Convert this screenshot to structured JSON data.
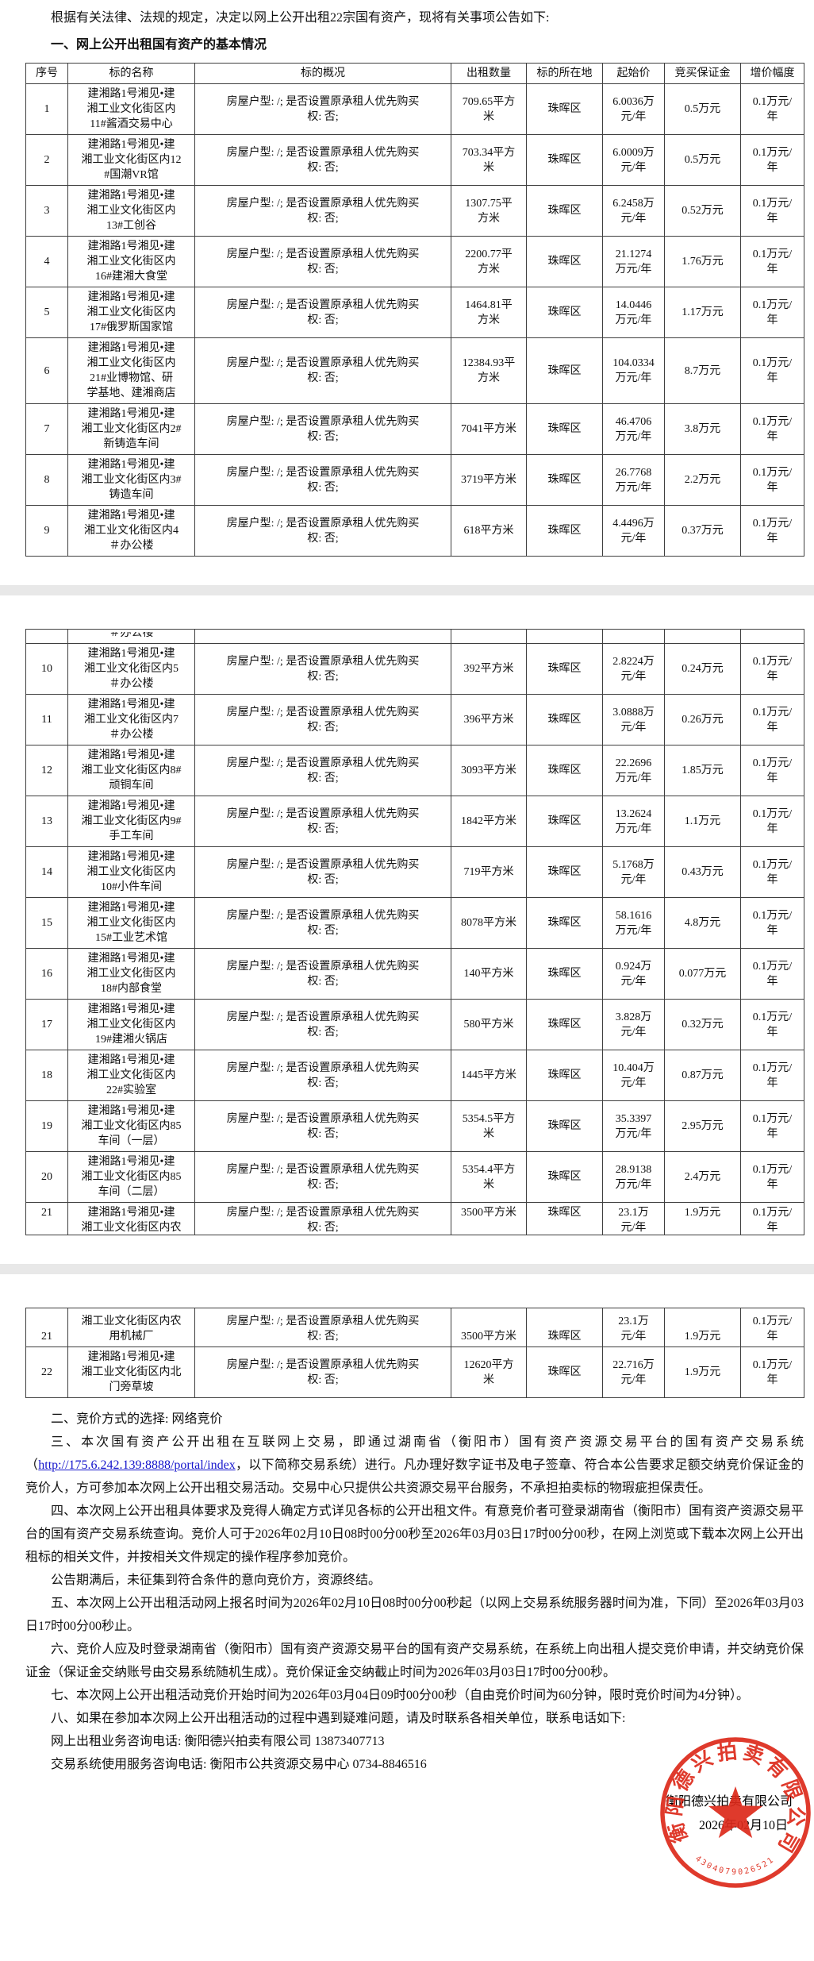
{
  "doc": {
    "intro": "根据有关法律、法规的规定，决定以网上公开出租22宗国有资产，现将有关事项公告如下:",
    "section1_title": "一、网上公开出租国有资产的基本情况",
    "s2": "二、竞价方式的选择: 网络竞价",
    "s3_pre": "三、本次国有资产公开出租在互联网上交易，即通过湖南省（衡阳市）国有资产资源交易平台的国有资产交易系统（",
    "s3_link": "http://175.6.242.139:8888/portal/index",
    "s3_post": "，以下简称交易系统）进行。凡办理好数字证书及电子签章、符合本公告要求足额交纳竞价保证金的竞价人，方可参加本次网上公开出租交易活动。交易中心只提供公共资源交易平台服务，不承担拍卖标的物瑕疵担保责任。",
    "s4": "四、本次网上公开出租具体要求及竞得人确定方式详见各标的公开出租文件。有意竞价者可登录湖南省（衡阳市）国有资产资源交易平台的国有资产交易系统查询。竞价人可于2026年02月10日08时00分00秒至2026年03月03日17时00分00秒，在网上浏览或下载本次网上公开出租标的相关文件，并按相关文件规定的操作程序参加竞价。",
    "s4b": "公告期满后，未征集到符合条件的意向竞价方，资源终结。",
    "s5": "五、本次网上公开出租活动网上报名时间为2026年02月10日08时00分00秒起（以网上交易系统服务器时间为准，下同）至2026年03月03日17时00分00秒止。",
    "s6": "六、竞价人应及时登录湖南省（衡阳市）国有资产资源交易平台的国有资产交易系统，在系统上向出租人提交竞价申请，并交纳竞价保证金（保证金交纳账号由交易系统随机生成）。竞价保证金交纳截止时间为2026年03月03日17时00分00秒。",
    "s7": "七、本次网上公开出租活动竞价开始时间为2026年03月04日09时00分00秒（自由竞价时间为60分钟，限时竞价时间为4分钟）。",
    "s8": "八、如果在参加本次网上公开出租活动的过程中遇到疑难问题，请及时联系各相关单位，联系电话如下:",
    "contact1": "网上出租业务咨询电话: 衡阳德兴拍卖有限公司 13873407713",
    "contact2": "交易系统使用服务咨询电话: 衡阳市公共资源交易中心 0734-8846516"
  },
  "table": {
    "headers": [
      "序号",
      "标的名称",
      "标的概况",
      "出租数量",
      "标的所在地",
      "起始价",
      "竞买保证金",
      "增价幅度"
    ],
    "common": {
      "overview": "房屋户型: /; 是否设置原承租人优先购买\n权: 否;",
      "district": "珠晖区",
      "increment": "0.1万元/\n年"
    },
    "rows": [
      {
        "no": "1",
        "name": "建湘路1号湘见•建\n湘工业文化街区内\n11#酱酒交易中心",
        "qty": "709.65平方\n米",
        "price": "6.0036万\n元/年",
        "deposit": "0.5万元"
      },
      {
        "no": "2",
        "name": "建湘路1号湘见•建\n湘工业文化街区内12\n#国潮VR馆",
        "qty": "703.34平方\n米",
        "price": "6.0009万\n元/年",
        "deposit": "0.5万元"
      },
      {
        "no": "3",
        "name": "建湘路1号湘见•建\n湘工业文化街区内\n13#工创谷",
        "qty": "1307.75平\n方米",
        "price": "6.2458万\n元/年",
        "deposit": "0.52万元"
      },
      {
        "no": "4",
        "name": "建湘路1号湘见•建\n湘工业文化街区内\n16#建湘大食堂",
        "qty": "2200.77平\n方米",
        "price": "21.1274\n万元/年",
        "deposit": "1.76万元"
      },
      {
        "no": "5",
        "name": "建湘路1号湘见•建\n湘工业文化街区内\n17#俄罗斯国家馆",
        "qty": "1464.81平\n方米",
        "price": "14.0446\n万元/年",
        "deposit": "1.17万元"
      },
      {
        "no": "6",
        "name": "建湘路1号湘见•建\n湘工业文化街区内\n21#业博物馆、研\n学基地、建湘商店",
        "qty": "12384.93平\n方米",
        "price": "104.0334\n万元/年",
        "deposit": "8.7万元"
      },
      {
        "no": "7",
        "name": "建湘路1号湘见•建\n湘工业文化街区内2#\n新铸造车间",
        "qty": "7041平方米",
        "price": "46.4706\n万元/年",
        "deposit": "3.8万元"
      },
      {
        "no": "8",
        "name": "建湘路1号湘见•建\n湘工业文化街区内3#\n铸造车间",
        "qty": "3719平方米",
        "price": "26.7768\n万元/年",
        "deposit": "2.2万元"
      },
      {
        "no": "9",
        "name": "建湘路1号湘见•建\n湘工业文化街区内4\n＃办公楼",
        "qty": "618平方米",
        "price": "4.4496万\n元/年",
        "deposit": "0.37万元"
      },
      {
        "no": "10",
        "name": "建湘路1号湘见•建\n湘工业文化街区内5\n＃办公楼",
        "qty": "392平方米",
        "price": "2.8224万\n元/年",
        "deposit": "0.24万元"
      },
      {
        "no": "11",
        "name": "建湘路1号湘见•建\n湘工业文化街区内7\n＃办公楼",
        "qty": "396平方米",
        "price": "3.0888万\n元/年",
        "deposit": "0.26万元"
      },
      {
        "no": "12",
        "name": "建湘路1号湘见•建\n湘工业文化街区内8#\n顽铜车间",
        "qty": "3093平方米",
        "price": "22.2696\n万元/年",
        "deposit": "1.85万元"
      },
      {
        "no": "13",
        "name": "建湘路1号湘见•建\n湘工业文化街区内9#\n手工车间",
        "qty": "1842平方米",
        "price": "13.2624\n万元/年",
        "deposit": "1.1万元"
      },
      {
        "no": "14",
        "name": "建湘路1号湘见•建\n湘工业文化街区内\n10#小件车间",
        "qty": "719平方米",
        "price": "5.1768万\n元/年",
        "deposit": "0.43万元"
      },
      {
        "no": "15",
        "name": "建湘路1号湘见•建\n湘工业文化街区内\n15#工业艺术馆",
        "qty": "8078平方米",
        "price": "58.1616\n万元/年",
        "deposit": "4.8万元"
      },
      {
        "no": "16",
        "name": "建湘路1号湘见•建\n湘工业文化街区内\n18#内部食堂",
        "qty": "140平方米",
        "price": "0.924万\n元/年",
        "deposit": "0.077万元"
      },
      {
        "no": "17",
        "name": "建湘路1号湘见•建\n湘工业文化街区内\n19#建湘火锅店",
        "qty": "580平方米",
        "price": "3.828万\n元/年",
        "deposit": "0.32万元"
      },
      {
        "no": "18",
        "name": "建湘路1号湘见•建\n湘工业文化街区内\n22#实验室",
        "qty": "1445平方米",
        "price": "10.404万\n元/年",
        "deposit": "0.87万元"
      },
      {
        "no": "19",
        "name": "建湘路1号湘见•建\n湘工业文化街区内85\n车间（一层）",
        "qty": "5354.5平方\n米",
        "price": "35.3397\n万元/年",
        "deposit": "2.95万元"
      },
      {
        "no": "20",
        "name": "建湘路1号湘见•建\n湘工业文化街区内85\n车间（二层）",
        "qty": "5354.4平方\n米",
        "price": "28.9138\n万元/年",
        "deposit": "2.4万元"
      },
      {
        "no": "21",
        "name": "建湘路1号湘见•建\n湘工业文化街区内农\n用机械厂",
        "qty": "3500平方米",
        "price": "23.1万\n元/年",
        "deposit": "1.9万元"
      },
      {
        "no": "22",
        "name": "建湘路1号湘见•建\n湘工业文化街区内北\n门旁草坡",
        "qty": "12620平方\n米",
        "price": "22.716万\n元/年",
        "deposit": "1.9万元"
      }
    ],
    "pages": {
      "page1_rows": [
        0,
        8
      ],
      "page2_rows": [
        9,
        19
      ],
      "page2_partial_top_row": 20,
      "page3_partial_bottom_row": 20,
      "page3_rows": [
        21,
        21
      ]
    }
  },
  "fragments": {
    "row9_tail_name": "＃办公楼"
  },
  "signature": {
    "company": "衡阳德兴拍卖有限公司",
    "date": "2026年02月10日"
  },
  "seal": {
    "ring_text": "衡阳德兴拍卖有限公司",
    "number": "4304079026521",
    "color": "#dd2a1b"
  }
}
